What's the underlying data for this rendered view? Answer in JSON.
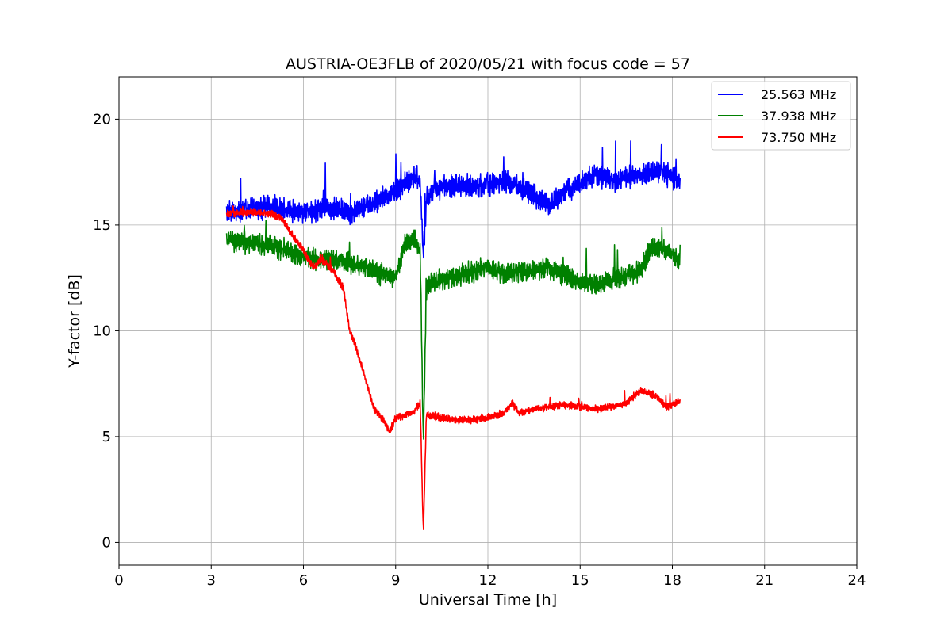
{
  "chart_data": {
    "type": "line",
    "title": "AUSTRIA-OE3FLB of 2020/05/21 with focus code = 57",
    "xlabel": "Universal Time [h]",
    "ylabel": "Y-factor [dB]",
    "xlim": [
      0,
      24
    ],
    "ylim": [
      -1.07,
      22.0
    ],
    "xticks": [
      0,
      3,
      6,
      9,
      12,
      15,
      18,
      21,
      24
    ],
    "yticks": [
      0,
      5,
      10,
      15,
      20
    ],
    "grid": true,
    "legend_position": "top-right",
    "series": [
      {
        "name": "25.563 MHz",
        "color": "#0000ff",
        "x": [
          3.5,
          4.0,
          4.5,
          5.0,
          5.5,
          6.0,
          6.5,
          7.0,
          7.5,
          8.0,
          8.5,
          9.0,
          9.3,
          9.6,
          9.8,
          9.9,
          10.0,
          10.2,
          10.5,
          11.0,
          11.5,
          12.0,
          12.5,
          13.0,
          13.5,
          14.0,
          14.5,
          15.0,
          15.5,
          16.0,
          16.5,
          17.0,
          17.5,
          18.0,
          18.25
        ],
        "y": [
          15.6,
          15.7,
          15.8,
          15.9,
          15.7,
          15.6,
          15.7,
          15.8,
          15.6,
          15.9,
          16.2,
          16.6,
          17.0,
          17.3,
          17.1,
          13.5,
          16.2,
          16.6,
          16.8,
          16.9,
          16.8,
          16.9,
          17.1,
          16.8,
          16.4,
          15.9,
          16.6,
          16.9,
          17.4,
          17.1,
          17.2,
          17.3,
          17.5,
          17.3,
          16.9
        ],
        "noise": 0.75
      },
      {
        "name": "37.938 MHz",
        "color": "#008000",
        "x": [
          3.5,
          4.0,
          4.5,
          5.0,
          5.5,
          6.0,
          6.5,
          7.0,
          7.5,
          8.0,
          8.5,
          9.0,
          9.3,
          9.6,
          9.8,
          9.9,
          10.0,
          10.2,
          10.5,
          11.0,
          11.5,
          12.0,
          12.5,
          13.0,
          13.5,
          14.0,
          14.5,
          15.0,
          15.5,
          16.0,
          16.5,
          17.0,
          17.2,
          17.5,
          18.0,
          18.25
        ],
        "y": [
          14.3,
          14.2,
          14.1,
          14.0,
          13.8,
          13.5,
          13.3,
          13.4,
          13.2,
          13.0,
          12.7,
          12.5,
          14.2,
          14.3,
          13.8,
          4.5,
          12.0,
          12.3,
          12.4,
          12.6,
          12.8,
          13.0,
          12.7,
          12.8,
          12.9,
          13.0,
          12.6,
          12.3,
          12.2,
          12.4,
          12.6,
          12.9,
          13.6,
          14.0,
          13.6,
          13.2
        ],
        "noise": 0.7
      },
      {
        "name": "73.750 MHz",
        "color": "#ff0000",
        "x": [
          3.5,
          4.0,
          4.5,
          5.0,
          5.3,
          5.6,
          6.0,
          6.3,
          6.6,
          7.0,
          7.3,
          7.5,
          7.7,
          8.0,
          8.3,
          8.6,
          8.8,
          9.0,
          9.3,
          9.6,
          9.8,
          9.9,
          10.0,
          10.1,
          10.5,
          11.0,
          11.5,
          12.0,
          12.5,
          12.8,
          13.0,
          13.5,
          14.0,
          14.5,
          15.0,
          15.5,
          16.0,
          16.5,
          17.0,
          17.5,
          17.8,
          18.0,
          18.25
        ],
        "y": [
          15.5,
          15.6,
          15.6,
          15.5,
          15.3,
          14.6,
          13.8,
          13.0,
          13.4,
          12.8,
          12.0,
          10.0,
          9.3,
          7.8,
          6.3,
          5.8,
          5.2,
          5.9,
          6.0,
          6.2,
          6.6,
          0.3,
          6.1,
          6.0,
          5.9,
          5.8,
          5.8,
          5.9,
          6.1,
          6.6,
          6.1,
          6.3,
          6.4,
          6.5,
          6.4,
          6.3,
          6.4,
          6.6,
          7.2,
          6.9,
          6.4,
          6.5,
          6.7
        ],
        "noise": 0.25
      }
    ]
  }
}
